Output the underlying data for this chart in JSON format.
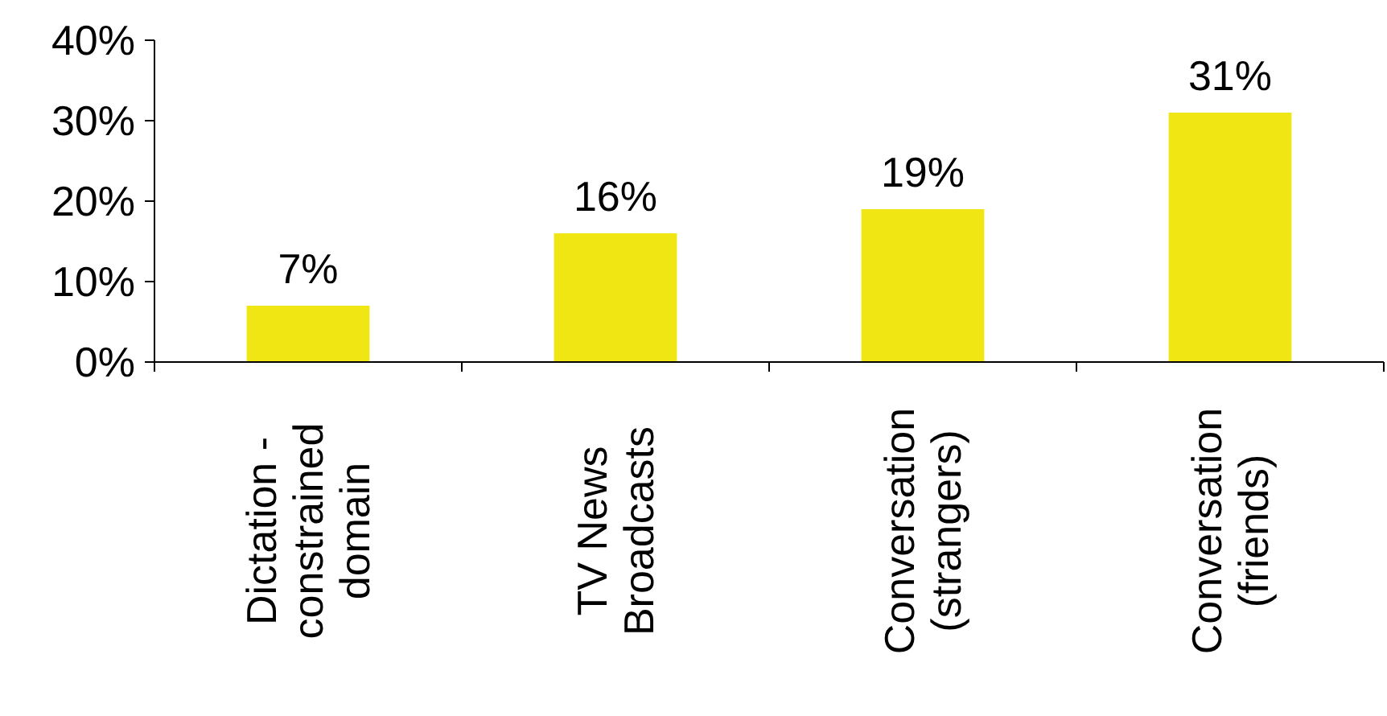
{
  "chart_data": {
    "type": "bar",
    "categories": [
      "Dictation -\nconstrained\ndomain",
      "TV News\nBroadcasts",
      "Conversation\n(strangers)",
      "Conversation\n(friends)"
    ],
    "values": [
      7,
      16,
      19,
      31
    ],
    "color": "#f0e614",
    "value_labels": [
      "7%",
      "16%",
      "19%",
      "31%"
    ],
    "ylim": [
      0,
      40
    ],
    "yticks": [
      {
        "value": 0,
        "label": "0%"
      },
      {
        "value": 10,
        "label": "10%"
      },
      {
        "value": 20,
        "label": "20%"
      },
      {
        "value": 30,
        "label": "30%"
      },
      {
        "value": 40,
        "label": "40%"
      }
    ],
    "grid": false
  }
}
